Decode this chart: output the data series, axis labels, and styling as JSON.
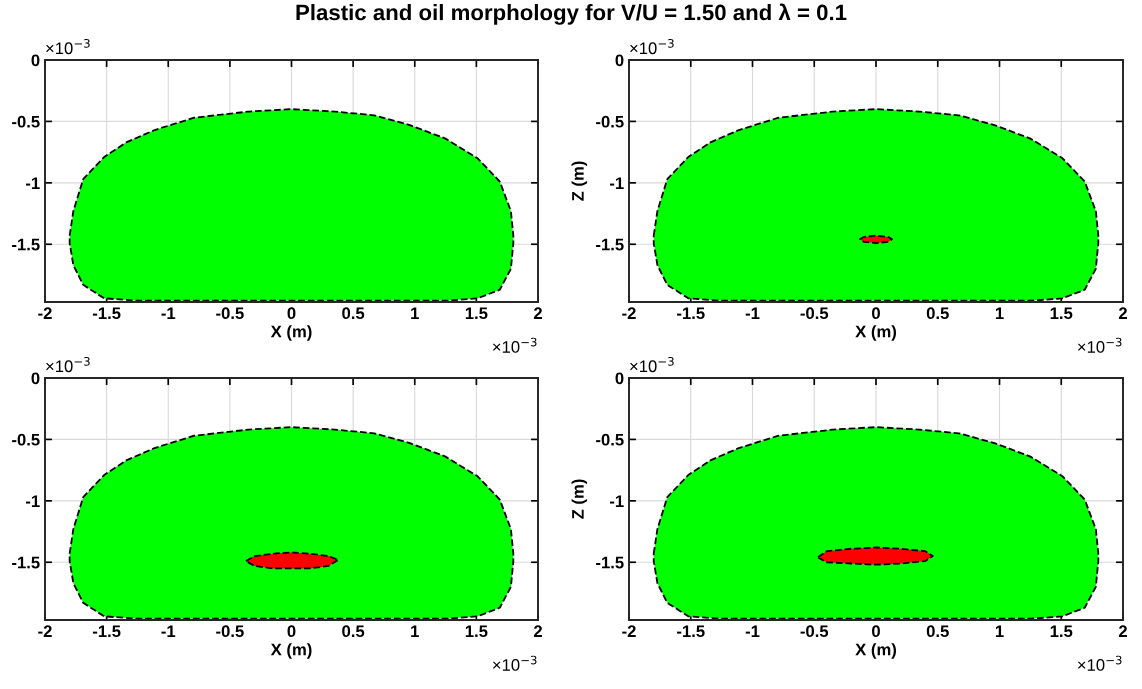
{
  "chart_data": [
    {
      "type": "area",
      "title": "Plastic and oil morphology for V/U = 1.50 and λ = 0.1",
      "xlabel": "X (m)",
      "xlim": [
        -2,
        2
      ],
      "ylim": [
        -1.97,
        0
      ],
      "xticks": [
        -2,
        -1.5,
        -1,
        -0.5,
        0,
        0.5,
        1,
        1.5,
        2
      ],
      "yticks": [
        -1.5,
        -1,
        -0.5,
        0
      ],
      "grid": true,
      "line_style": "dashed",
      "annotations": [
        "×10$^{−3}$",
        "×10$^{−3}$"
      ],
      "series": [
        {
          "color": "#00ff00",
          "x": [
            -1.8,
            -1.77,
            -1.69,
            -1.52,
            -1.34,
            -1.11,
            -0.79,
            -0.35,
            0,
            0.35,
            0.67,
            0.96,
            1.25,
            1.51,
            1.69,
            1.78,
            1.8,
            1.8,
            1.78,
            1.69,
            1.51,
            1.25,
            0,
            -1.25,
            -1.52,
            -1.69,
            -1.77,
            -1.8
          ],
          "values": [
            -1.43,
            -1.23,
            -0.97,
            -0.79,
            -0.67,
            -0.57,
            -0.47,
            -0.42,
            -0.4,
            -0.42,
            -0.45,
            -0.53,
            -0.64,
            -0.8,
            -0.99,
            -1.23,
            -1.43,
            -1.49,
            -1.7,
            -1.87,
            -1.94,
            -1.96,
            -1.96,
            -1.96,
            -1.94,
            -1.83,
            -1.67,
            -1.49
          ]
        }
      ]
    },
    {
      "type": "area",
      "xlabel": "X (m)",
      "ylabel": "Z (m)",
      "xlim": [
        -2,
        2
      ],
      "ylim": [
        -1.97,
        0
      ],
      "xticks": [
        -2,
        -1.5,
        -1,
        -0.5,
        0,
        0.5,
        1,
        1.5,
        2
      ],
      "yticks": [
        -1.5,
        -1,
        -0.5,
        0
      ],
      "grid": true,
      "line_style": "dashed",
      "annotations": [
        "×10$^{−3}$",
        "×10$^{−3}$"
      ],
      "series": [
        {
          "color": "#00ff00",
          "x": [
            -1.8,
            -1.77,
            -1.69,
            -1.52,
            -1.34,
            -1.11,
            -0.79,
            -0.35,
            0,
            0.35,
            0.67,
            0.96,
            1.25,
            1.51,
            1.69,
            1.78,
            1.8,
            1.8,
            1.78,
            1.69,
            1.51,
            1.25,
            0,
            -1.25,
            -1.52,
            -1.69,
            -1.77,
            -1.8
          ],
          "values": [
            -1.43,
            -1.23,
            -0.97,
            -0.79,
            -0.67,
            -0.57,
            -0.47,
            -0.42,
            -0.4,
            -0.42,
            -0.45,
            -0.53,
            -0.64,
            -0.8,
            -0.99,
            -1.23,
            -1.43,
            -1.49,
            -1.7,
            -1.87,
            -1.94,
            -1.96,
            -1.96,
            -1.96,
            -1.94,
            -1.83,
            -1.67,
            -1.49
          ]
        },
        {
          "color": "#ff0000",
          "x": [
            -0.13,
            -0.1,
            0,
            0.1,
            0.13,
            0.1,
            0,
            -0.1
          ],
          "values": [
            -1.46,
            -1.44,
            -1.43,
            -1.44,
            -1.46,
            -1.48,
            -1.49,
            -1.48
          ]
        }
      ]
    },
    {
      "type": "area",
      "xlabel": "X (m)",
      "xlim": [
        -2,
        2
      ],
      "ylim": [
        -1.97,
        0
      ],
      "xticks": [
        -2,
        -1.5,
        -1,
        -0.5,
        0,
        0.5,
        1,
        1.5,
        2
      ],
      "yticks": [
        -1.5,
        -1,
        -0.5,
        0
      ],
      "grid": true,
      "line_style": "dashed",
      "annotations": [
        "×10$^{−3}$",
        "×10$^{−3}$"
      ],
      "series": [
        {
          "color": "#00ff00",
          "x": [
            -1.8,
            -1.77,
            -1.69,
            -1.52,
            -1.34,
            -1.11,
            -0.79,
            -0.35,
            0,
            0.35,
            0.67,
            0.96,
            1.25,
            1.51,
            1.69,
            1.78,
            1.8,
            1.8,
            1.78,
            1.69,
            1.51,
            1.25,
            0,
            -1.25,
            -1.52,
            -1.69,
            -1.77,
            -1.8
          ],
          "values": [
            -1.43,
            -1.23,
            -0.97,
            -0.79,
            -0.67,
            -0.57,
            -0.47,
            -0.42,
            -0.4,
            -0.42,
            -0.45,
            -0.53,
            -0.64,
            -0.8,
            -0.99,
            -1.23,
            -1.43,
            -1.49,
            -1.7,
            -1.87,
            -1.94,
            -1.96,
            -1.96,
            -1.96,
            -1.94,
            -1.83,
            -1.67,
            -1.49
          ]
        },
        {
          "color": "#ff0000",
          "x": [
            -0.37,
            -0.3,
            -0.15,
            0,
            0.15,
            0.3,
            0.38,
            0.3,
            0.15,
            0,
            -0.15,
            -0.3
          ],
          "values": [
            -1.49,
            -1.45,
            -1.43,
            -1.42,
            -1.43,
            -1.45,
            -1.48,
            -1.53,
            -1.55,
            -1.55,
            -1.55,
            -1.53
          ]
        }
      ]
    },
    {
      "type": "area",
      "xlabel": "X (m)",
      "ylabel": "Z (m)",
      "xlim": [
        -2,
        2
      ],
      "ylim": [
        -1.97,
        0
      ],
      "xticks": [
        -2,
        -1.5,
        -1,
        -0.5,
        0,
        0.5,
        1,
        1.5,
        2
      ],
      "yticks": [
        -1.5,
        -1,
        -0.5,
        0
      ],
      "grid": true,
      "line_style": "dashed",
      "annotations": [
        "×10$^{−3}$",
        "×10$^{−3}$"
      ],
      "series": [
        {
          "color": "#00ff00",
          "x": [
            -1.8,
            -1.77,
            -1.69,
            -1.52,
            -1.34,
            -1.11,
            -0.79,
            -0.35,
            0,
            0.35,
            0.67,
            0.96,
            1.25,
            1.51,
            1.69,
            1.78,
            1.8,
            1.8,
            1.78,
            1.69,
            1.51,
            1.25,
            0,
            -1.25,
            -1.52,
            -1.69,
            -1.77,
            -1.8
          ],
          "values": [
            -1.43,
            -1.23,
            -0.97,
            -0.79,
            -0.67,
            -0.57,
            -0.47,
            -0.42,
            -0.4,
            -0.42,
            -0.45,
            -0.53,
            -0.64,
            -0.8,
            -0.99,
            -1.23,
            -1.43,
            -1.49,
            -1.7,
            -1.87,
            -1.94,
            -1.96,
            -1.96,
            -1.96,
            -1.94,
            -1.83,
            -1.67,
            -1.49
          ]
        },
        {
          "color": "#ff0000",
          "x": [
            -0.47,
            -0.4,
            -0.2,
            0,
            0.2,
            0.4,
            0.46,
            0.4,
            0.2,
            0,
            -0.2,
            -0.4
          ],
          "values": [
            -1.46,
            -1.41,
            -1.39,
            -1.38,
            -1.39,
            -1.41,
            -1.45,
            -1.49,
            -1.51,
            -1.52,
            -1.51,
            -1.5
          ]
        }
      ]
    }
  ]
}
